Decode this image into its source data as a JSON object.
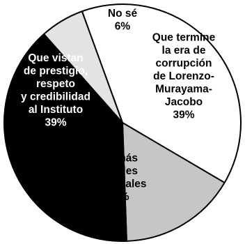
{
  "chart_data": {
    "type": "pie",
    "start_angle_deg": -20,
    "direction": "clockwise",
    "slices": [
      {
        "label_lines": [
          "Que termine",
          "la era de",
          "corrupción",
          "de Lorenzo-",
          "Murayama-",
          "Jacobo"
        ],
        "value": 39,
        "value_label": "39%",
        "fill": "#ffffff",
        "text_color": "#000000"
      },
      {
        "label_lines": [
          "No más",
          "fraudes",
          "electorales"
        ],
        "value": 16,
        "value_label": "16%",
        "fill": "#c6c6c6",
        "text_color": "#000000"
      },
      {
        "label_lines": [
          "Que vistan",
          "de prestigio,",
          "respeto",
          "y credibilidad",
          "al Instituto"
        ],
        "value": 39,
        "value_label": "39%",
        "fill": "#000000",
        "text_color": "#ffffff"
      },
      {
        "label_lines": [
          "No sé"
        ],
        "value": 6,
        "value_label": "6%",
        "fill": "#e3e3e3",
        "text_color": "#000000"
      }
    ],
    "edge_color": "#000000"
  }
}
